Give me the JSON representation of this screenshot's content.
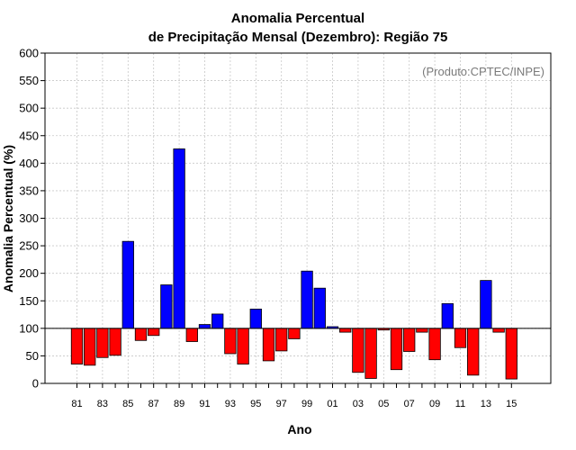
{
  "colors": {
    "positive": "#0000ff",
    "negative": "#ff0000",
    "outline": "#000000",
    "grid": "#c8c8c8",
    "credit": "#7a7a7a"
  },
  "chart_data": {
    "type": "bar",
    "title_line1": "Anomalia Percentual",
    "title_line2": "de Precipitação Mensal (Dezembro): Região 75",
    "credit": "(Produto:CPTEC/INPE)",
    "xlabel": "Ano",
    "ylabel": "Anomalia Percentual (%)",
    "ylim": [
      0,
      600
    ],
    "yticks": [
      0,
      50,
      100,
      150,
      200,
      250,
      300,
      350,
      400,
      450,
      500,
      550,
      600
    ],
    "baseline": 100,
    "grid": true,
    "categories": [
      "81",
      "82",
      "83",
      "84",
      "85",
      "86",
      "87",
      "88",
      "89",
      "90",
      "91",
      "92",
      "93",
      "94",
      "95",
      "96",
      "97",
      "98",
      "99",
      "00",
      "01",
      "02",
      "03",
      "04",
      "05",
      "06",
      "07",
      "08",
      "09",
      "10",
      "11",
      "12",
      "13",
      "14",
      "15"
    ],
    "xtick_labels": [
      "81",
      "83",
      "85",
      "87",
      "89",
      "91",
      "93",
      "95",
      "97",
      "99",
      "01",
      "03",
      "05",
      "07",
      "09",
      "11",
      "13",
      "15"
    ],
    "values": [
      35,
      33,
      47,
      51,
      258,
      78,
      87,
      179,
      426,
      76,
      107,
      126,
      54,
      35,
      135,
      41,
      59,
      81,
      204,
      173,
      103,
      93,
      20,
      9,
      97,
      25,
      58,
      93,
      43,
      145,
      65,
      15,
      187,
      93,
      8
    ]
  }
}
